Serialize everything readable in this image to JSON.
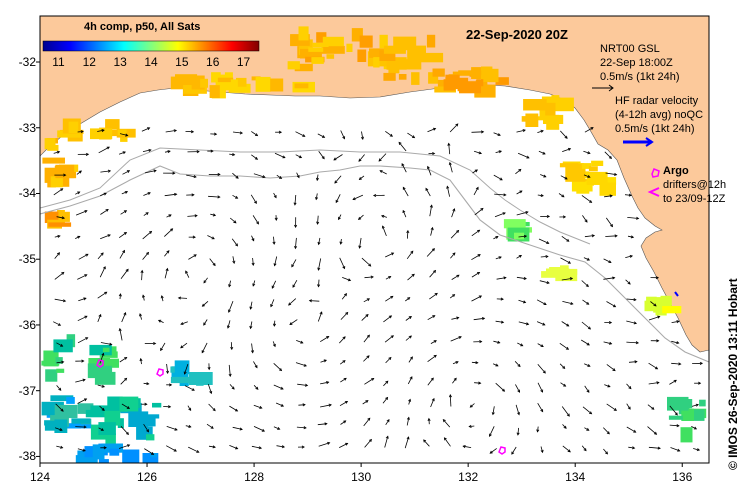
{
  "map": {
    "lon_range": [
      124,
      136.5
    ],
    "lat_range": [
      -38.1,
      -31.3
    ],
    "x_ticks": [
      "124",
      "126",
      "128",
      "130",
      "132",
      "134",
      "136"
    ],
    "y_ticks": [
      "-32",
      "-33",
      "-34",
      "-35",
      "-36",
      "-37",
      "-38"
    ],
    "land_color": "#fcc99b",
    "ocean_color": "#ffffff"
  },
  "colorbar": {
    "title": "4h comp, p50, All Sats",
    "ticks": [
      "11",
      "12",
      "13",
      "14",
      "15",
      "16",
      "17"
    ],
    "range": [
      10.5,
      17.5
    ]
  },
  "date_title": "22-Sep-2020 20Z",
  "legend": {
    "nrt_line1": "NRT00 GSL",
    "nrt_line2": "22-Sep 18:00Z",
    "nrt_line3": "0.5m/s (1kt 24h)",
    "hf_line1": "HF radar velocity",
    "hf_line2": "(4-12h avg) noQC",
    "hf_line3": "0.5m/s (1kt 24h)",
    "argo_label": "Argo",
    "drifters_line1": "drifters@12h",
    "drifters_line2": "to 23/09-12Z",
    "argo_color": "#ff00ff",
    "hf_color": "#0000ff"
  },
  "credit": "© IMOS 26-Sep-2020 13:11 Hobart"
}
